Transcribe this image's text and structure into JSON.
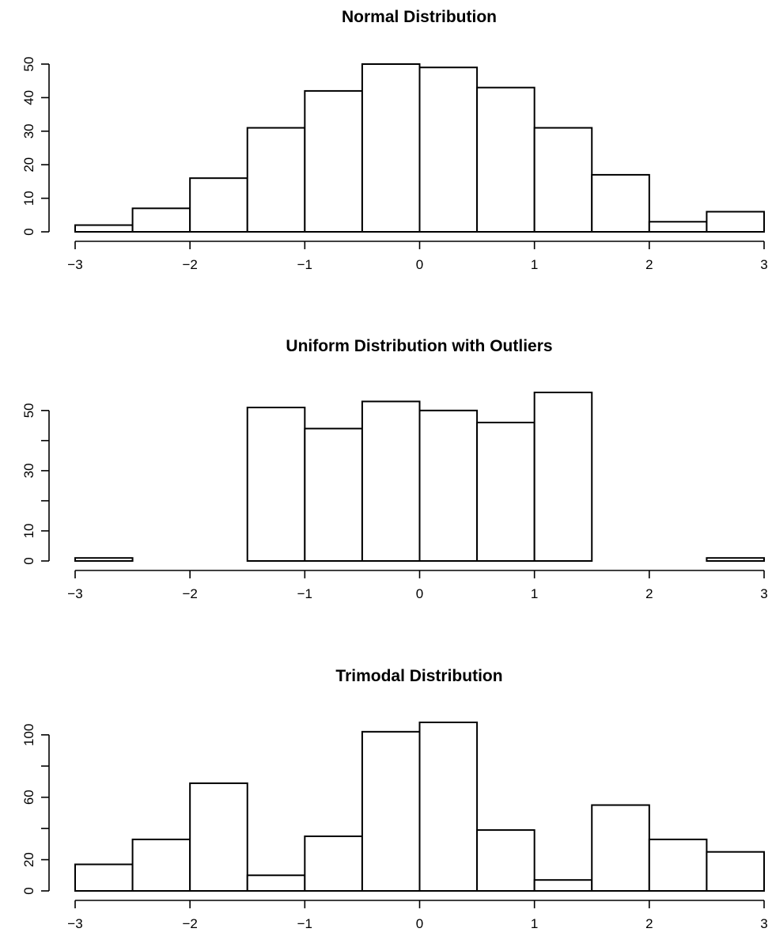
{
  "chart_data": [
    {
      "type": "bar",
      "title": "Normal Distribution",
      "xlabel": "",
      "ylabel": "",
      "bin_edges": [
        -3,
        -2.5,
        -2,
        -1.5,
        -1,
        -0.5,
        0,
        0.5,
        1,
        1.5,
        2,
        2.5,
        3
      ],
      "values": [
        2,
        7,
        16,
        31,
        42,
        50,
        49,
        43,
        31,
        17,
        3,
        6
      ],
      "xlim": [
        -3,
        3
      ],
      "ylim": [
        0,
        50
      ],
      "x_ticks": [
        -3,
        -2,
        -1,
        0,
        1,
        2,
        3
      ],
      "x_tick_labels": [
        "−3",
        "−2",
        "−1",
        "0",
        "1",
        "2",
        "3"
      ],
      "y_ticks": [
        0,
        10,
        20,
        30,
        40,
        50
      ],
      "y_tick_labels": [
        "0",
        "10",
        "20",
        "30",
        "40",
        "50"
      ],
      "grid": false,
      "bar_fill": "#ffffff",
      "bar_stroke": "#000000"
    },
    {
      "type": "bar",
      "title": "Uniform Distribution with Outliers",
      "xlabel": "",
      "ylabel": "",
      "bin_edges": [
        -3,
        -2.5,
        -2,
        -1.5,
        -1,
        -0.5,
        0,
        0.5,
        1,
        1.5,
        2,
        2.5,
        3
      ],
      "values": [
        1,
        0,
        0,
        51,
        44,
        53,
        50,
        46,
        56,
        0,
        0,
        1
      ],
      "xlim": [
        -3,
        3
      ],
      "ylim": [
        0,
        56
      ],
      "x_ticks": [
        -3,
        -2,
        -1,
        0,
        1,
        2,
        3
      ],
      "x_tick_labels": [
        "−3",
        "−2",
        "−1",
        "0",
        "1",
        "2",
        "3"
      ],
      "y_ticks": [
        0,
        10,
        20,
        30,
        40,
        50
      ],
      "y_tick_labels": [
        "0",
        "10",
        "",
        "30",
        "",
        "50"
      ],
      "grid": false,
      "bar_fill": "#ffffff",
      "bar_stroke": "#000000"
    },
    {
      "type": "bar",
      "title": "Trimodal Distribution",
      "xlabel": "",
      "ylabel": "",
      "bin_edges": [
        -3,
        -2.5,
        -2,
        -1.5,
        -1,
        -0.5,
        0,
        0.5,
        1,
        1.5,
        2,
        2.5,
        3
      ],
      "values": [
        17,
        33,
        69,
        10,
        35,
        102,
        108,
        39,
        7,
        55,
        33,
        25
      ],
      "xlim": [
        -3,
        3
      ],
      "ylim": [
        0,
        108
      ],
      "x_ticks": [
        -3,
        -2,
        -1,
        0,
        1,
        2,
        3
      ],
      "x_tick_labels": [
        "−3",
        "−2",
        "−1",
        "0",
        "1",
        "2",
        "3"
      ],
      "y_ticks": [
        0,
        20,
        40,
        60,
        80,
        100
      ],
      "y_tick_labels": [
        "0",
        "20",
        "",
        "60",
        "",
        "100"
      ],
      "grid": false,
      "bar_fill": "#ffffff",
      "bar_stroke": "#000000"
    }
  ]
}
